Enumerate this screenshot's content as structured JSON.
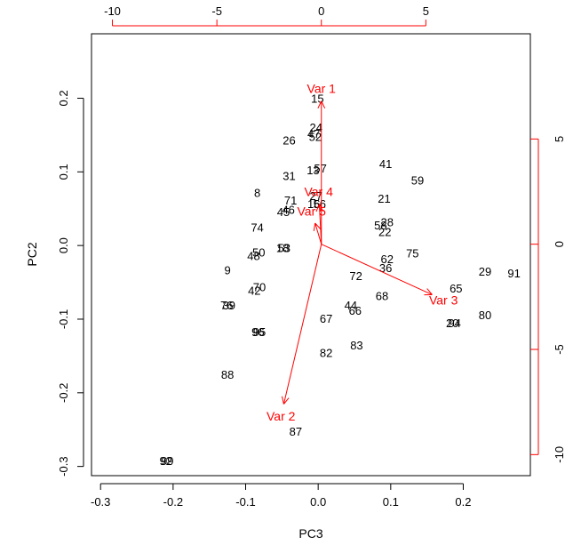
{
  "chart_data": {
    "type": "scatter",
    "subtype": "biplot",
    "xlabel": "PC3",
    "ylabel": "PC2",
    "xlim": [
      -0.3125,
      0.2925
    ],
    "ylim": [
      -0.3125,
      0.2875
    ],
    "x_ticks": [
      "-0.3",
      "-0.2",
      "-0.1",
      "0.0",
      "0.1",
      "0.2"
    ],
    "y_ticks": [
      "-0.3",
      "-0.2",
      "-0.1",
      "0.0",
      "0.1",
      "0.2"
    ],
    "top_ticks": [
      "-10",
      "-5",
      "0",
      "5"
    ],
    "right_ticks": [
      "-10",
      "-5",
      "0",
      "5"
    ],
    "arrow_scale_range": [
      -11,
      10
    ],
    "colors": {
      "points": "#000000",
      "arrows": "#ff0000",
      "frame": "#000000"
    },
    "points": [
      {
        "label": "15",
        "x": -0.001,
        "y": 0.2
      },
      {
        "label": "24",
        "x": -0.003,
        "y": 0.161
      },
      {
        "label": "47",
        "x": -0.006,
        "y": 0.152
      },
      {
        "label": "52",
        "x": -0.004,
        "y": 0.148
      },
      {
        "label": "26",
        "x": -0.04,
        "y": 0.143
      },
      {
        "label": "57",
        "x": 0.003,
        "y": 0.105
      },
      {
        "label": "13",
        "x": -0.007,
        "y": 0.103
      },
      {
        "label": "31",
        "x": -0.04,
        "y": 0.095
      },
      {
        "label": "41",
        "x": 0.093,
        "y": 0.111
      },
      {
        "label": "59",
        "x": 0.137,
        "y": 0.089
      },
      {
        "label": "8",
        "x": -0.084,
        "y": 0.072
      },
      {
        "label": "27",
        "x": -0.003,
        "y": 0.068
      },
      {
        "label": "71",
        "x": -0.038,
        "y": 0.062
      },
      {
        "label": "21",
        "x": 0.091,
        "y": 0.064
      },
      {
        "label": "16",
        "x": -0.006,
        "y": 0.057
      },
      {
        "label": "56",
        "x": 0.002,
        "y": 0.057
      },
      {
        "label": "46",
        "x": -0.041,
        "y": 0.049
      },
      {
        "label": "45",
        "x": -0.048,
        "y": 0.046
      },
      {
        "label": "74",
        "x": -0.084,
        "y": 0.025
      },
      {
        "label": "28",
        "x": 0.095,
        "y": 0.032
      },
      {
        "label": "58",
        "x": 0.086,
        "y": 0.028
      },
      {
        "label": "22",
        "x": 0.092,
        "y": 0.019
      },
      {
        "label": "50",
        "x": -0.082,
        "y": -0.009
      },
      {
        "label": "48",
        "x": -0.089,
        "y": -0.014
      },
      {
        "label": "53",
        "x": -0.047,
        "y": -0.003
      },
      {
        "label": "18",
        "x": -0.049,
        "y": -0.003
      },
      {
        "label": "62",
        "x": 0.095,
        "y": -0.018
      },
      {
        "label": "75",
        "x": 0.13,
        "y": -0.01
      },
      {
        "label": "36",
        "x": 0.093,
        "y": -0.03
      },
      {
        "label": "9",
        "x": -0.125,
        "y": -0.033
      },
      {
        "label": "29",
        "x": 0.23,
        "y": -0.035
      },
      {
        "label": "91",
        "x": 0.27,
        "y": -0.037
      },
      {
        "label": "72",
        "x": 0.052,
        "y": -0.041
      },
      {
        "label": "70",
        "x": -0.081,
        "y": -0.056
      },
      {
        "label": "42",
        "x": -0.088,
        "y": -0.061
      },
      {
        "label": "65",
        "x": 0.19,
        "y": -0.058
      },
      {
        "label": "68",
        "x": 0.088,
        "y": -0.068
      },
      {
        "label": "44",
        "x": 0.045,
        "y": -0.081
      },
      {
        "label": "66",
        "x": 0.051,
        "y": -0.088
      },
      {
        "label": "39",
        "x": -0.123,
        "y": -0.081
      },
      {
        "label": "76",
        "x": -0.126,
        "y": -0.081
      },
      {
        "label": "67",
        "x": 0.011,
        "y": -0.099
      },
      {
        "label": "80",
        "x": 0.23,
        "y": -0.094
      },
      {
        "label": "94",
        "x": 0.188,
        "y": -0.105
      },
      {
        "label": "20",
        "x": 0.185,
        "y": -0.105
      },
      {
        "label": "95",
        "x": -0.081,
        "y": -0.117
      },
      {
        "label": "96",
        "x": -0.083,
        "y": -0.117
      },
      {
        "label": "83",
        "x": 0.053,
        "y": -0.135
      },
      {
        "label": "82",
        "x": 0.011,
        "y": -0.145
      },
      {
        "label": "88",
        "x": -0.125,
        "y": -0.175
      },
      {
        "label": "87",
        "x": -0.031,
        "y": -0.252
      },
      {
        "label": "99",
        "x": -0.208,
        "y": -0.292
      },
      {
        "label": "92",
        "x": -0.21,
        "y": -0.292
      }
    ],
    "variables": [
      {
        "label": "Var 1",
        "x": 0.0,
        "y": 6.8
      },
      {
        "label": "Var 2",
        "x": -1.8,
        "y": -7.6
      },
      {
        "label": "Var 3",
        "x": 5.3,
        "y": -2.4
      },
      {
        "label": "Var 4",
        "x": -0.1,
        "y": 1.9
      },
      {
        "label": "Var 5",
        "x": -0.3,
        "y": 1.0
      }
    ]
  }
}
